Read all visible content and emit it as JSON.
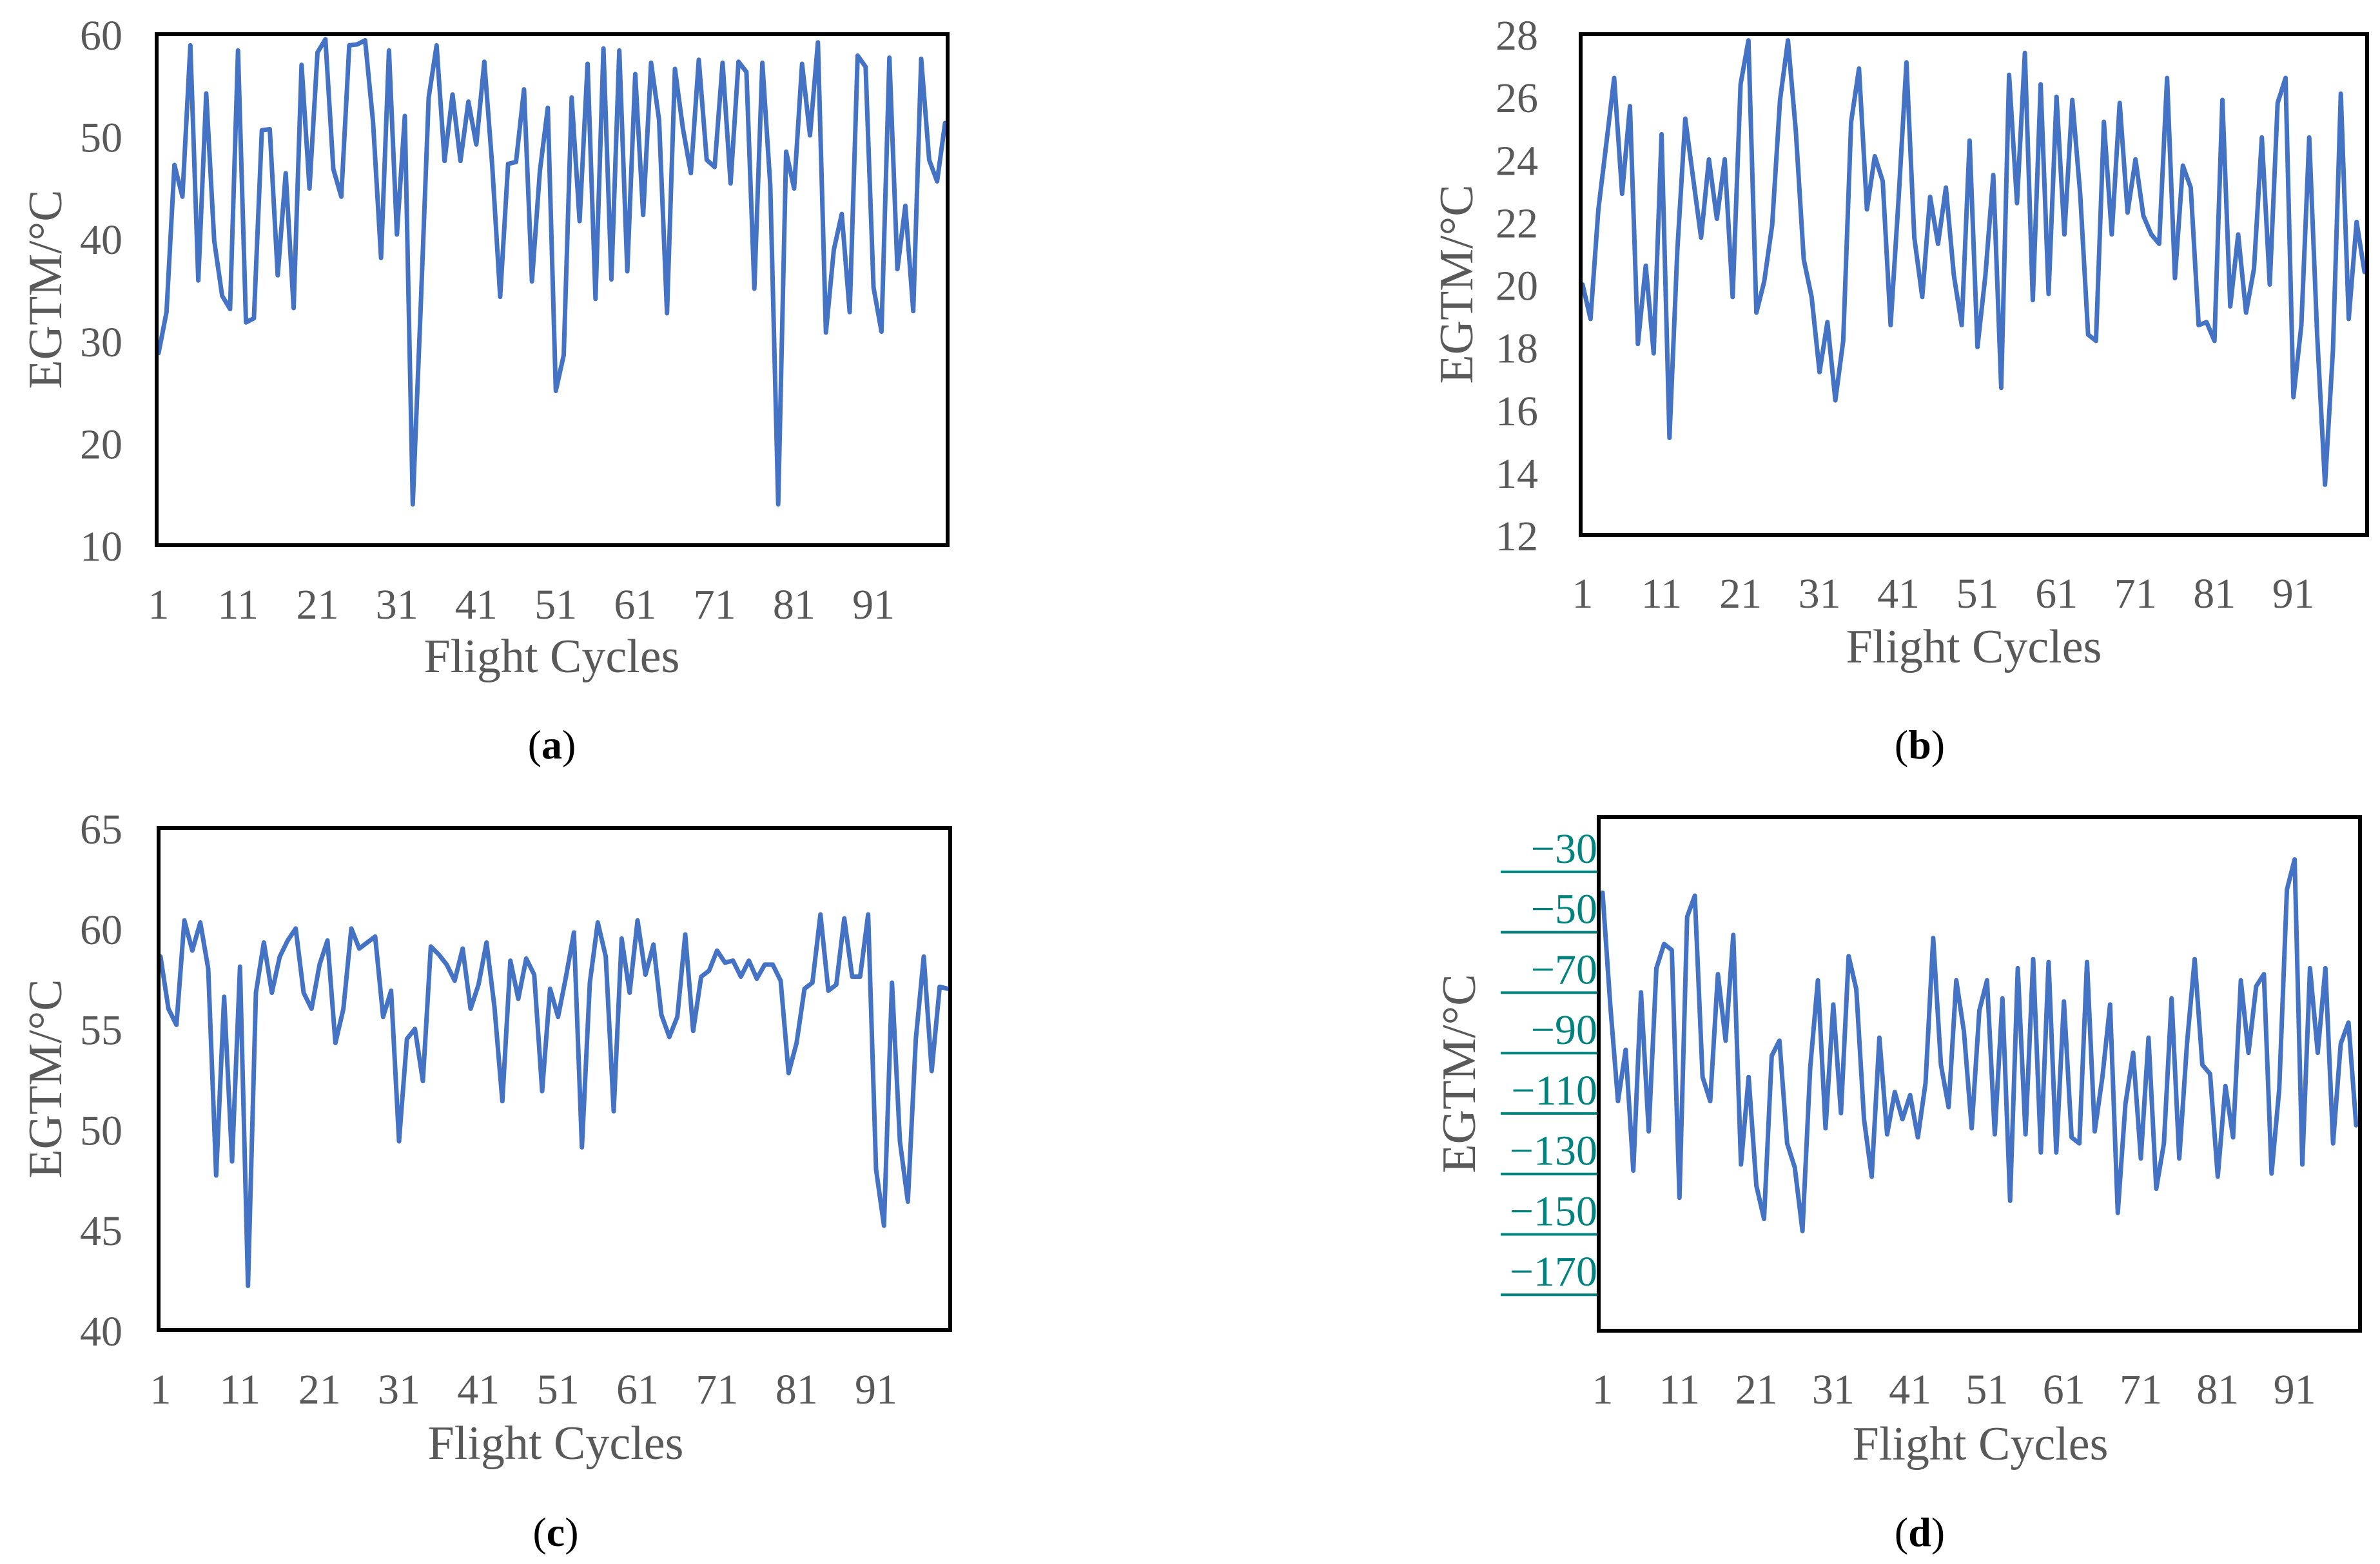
{
  "figure": {
    "series_color": "#4472C4",
    "frame_color": "#000000",
    "text_color": "#595959",
    "panel_d_tick_color": "#00827F"
  },
  "chart_data": [
    {
      "id": "a",
      "panel_label": "a",
      "type": "line",
      "xlabel": "Flight Cycles",
      "ylabel": "EGTM/°C",
      "ylim": [
        10,
        60
      ],
      "yticks": [
        "10",
        "20",
        "30",
        "40",
        "50",
        "60"
      ],
      "xticks": [
        "1",
        "11",
        "21",
        "31",
        "41",
        "51",
        "61",
        "71",
        "81",
        "91"
      ],
      "x_start": 1,
      "values": [
        28.8,
        32.8,
        47.2,
        44.1,
        58.9,
        35.9,
        54.2,
        39.8,
        34.4,
        33.1,
        58.4,
        31.8,
        32.2,
        50.6,
        50.7,
        36.4,
        46.4,
        33.2,
        57.0,
        44.9,
        58.2,
        59.5,
        46.8,
        44.1,
        58.9,
        59.0,
        59.4,
        51.4,
        38.1,
        58.4,
        40.4,
        52.0,
        14.0,
        33.4,
        53.8,
        58.9,
        47.6,
        54.1,
        47.6,
        53.4,
        49.2,
        57.3,
        47.1,
        34.3,
        47.3,
        47.5,
        54.6,
        35.8,
        46.6,
        52.8,
        25.1,
        28.6,
        53.8,
        41.7,
        57.1,
        34.1,
        58.6,
        36.0,
        58.4,
        36.8,
        56.1,
        42.3,
        57.2,
        51.6,
        32.7,
        56.6,
        50.8,
        46.4,
        57.5,
        47.7,
        47.0,
        57.2,
        45.4,
        57.3,
        56.3,
        35.1,
        57.2,
        45.2,
        14.0,
        48.5,
        44.9,
        57.1,
        50.1,
        59.2,
        30.8,
        38.9,
        42.4,
        32.8,
        57.9,
        56.8,
        35.2,
        30.9,
        57.7,
        37.0,
        43.2,
        32.9,
        57.6,
        47.7,
        45.6,
        51.3
      ]
    },
    {
      "id": "b",
      "panel_label": "b",
      "type": "line",
      "xlabel": "Flight Cycles",
      "ylabel": "EGTM/°C",
      "ylim": [
        12,
        28
      ],
      "yticks": [
        "12",
        "14",
        "16",
        "18",
        "20",
        "22",
        "24",
        "26",
        "28"
      ],
      "xticks": [
        "1",
        "11",
        "21",
        "31",
        "41",
        "51",
        "61",
        "71",
        "81",
        "91"
      ],
      "x_start": 1,
      "values": [
        20.0,
        18.9,
        22.4,
        24.5,
        26.6,
        22.9,
        25.7,
        18.1,
        20.6,
        17.8,
        24.8,
        15.1,
        21.1,
        25.3,
        23.4,
        21.5,
        24.0,
        22.1,
        24.0,
        19.6,
        26.4,
        27.8,
        19.1,
        20.1,
        21.9,
        25.9,
        27.8,
        24.9,
        20.8,
        19.6,
        17.2,
        18.8,
        16.3,
        18.2,
        25.2,
        26.9,
        22.4,
        24.1,
        23.3,
        18.7,
        22.7,
        27.1,
        21.5,
        19.6,
        22.8,
        21.3,
        23.1,
        20.3,
        18.7,
        24.6,
        18.0,
        20.3,
        23.5,
        16.7,
        26.7,
        22.6,
        27.4,
        19.5,
        26.4,
        19.7,
        26.0,
        21.6,
        25.9,
        22.9,
        18.4,
        18.2,
        25.2,
        21.6,
        25.8,
        22.3,
        24.0,
        22.2,
        21.6,
        21.3,
        26.6,
        20.2,
        23.8,
        23.1,
        18.7,
        18.8,
        18.2,
        25.9,
        19.3,
        21.6,
        19.1,
        20.5,
        24.7,
        20.0,
        25.8,
        26.6,
        16.4,
        18.7,
        24.7,
        18.4,
        13.6,
        17.9,
        26.1,
        18.9,
        22.0,
        20.4
      ]
    },
    {
      "id": "c",
      "panel_label": "c",
      "type": "line",
      "xlabel": "Flight Cycles",
      "ylabel": "EGTM/°C",
      "ylim": [
        40,
        65
      ],
      "yticks": [
        "40",
        "45",
        "50",
        "55",
        "60",
        "65"
      ],
      "xticks": [
        "1",
        "11",
        "21",
        "31",
        "41",
        "51",
        "61",
        "71",
        "81",
        "91"
      ],
      "x_start": 1,
      "values": [
        58.6,
        56.0,
        55.2,
        60.4,
        58.9,
        60.3,
        58.0,
        47.7,
        56.6,
        48.4,
        58.1,
        42.2,
        56.8,
        59.3,
        56.8,
        58.6,
        59.4,
        60.0,
        56.8,
        56.0,
        58.2,
        59.4,
        54.3,
        56.0,
        60.0,
        59.0,
        59.3,
        59.6,
        55.6,
        56.9,
        49.4,
        54.5,
        55.0,
        52.4,
        59.1,
        58.7,
        58.2,
        57.4,
        59.0,
        56.0,
        57.2,
        59.3,
        56.1,
        51.4,
        58.4,
        56.5,
        58.5,
        57.7,
        51.9,
        57.0,
        55.6,
        57.6,
        59.8,
        49.1,
        57.3,
        60.3,
        58.6,
        50.9,
        59.5,
        56.8,
        60.4,
        57.7,
        59.2,
        55.7,
        54.6,
        55.6,
        59.7,
        54.9,
        57.6,
        57.9,
        58.9,
        58.3,
        58.4,
        57.6,
        58.4,
        57.5,
        58.2,
        58.2,
        57.4,
        52.8,
        54.3,
        57.0,
        57.3,
        60.7,
        56.9,
        57.2,
        60.5,
        57.6,
        57.6,
        60.7,
        48.0,
        45.2,
        57.3,
        49.4,
        46.4,
        54.5,
        58.6,
        52.9,
        57.1,
        57.0
      ]
    },
    {
      "id": "d",
      "panel_label": "d",
      "type": "line",
      "xlabel": "Flight Cycles",
      "ylabel": "EGTM/°C",
      "ylim": [
        -190,
        -20
      ],
      "yticks": [
        "−30",
        "−50",
        "−70",
        "−90",
        "−110",
        "−130",
        "−150",
        "−170"
      ],
      "ytick_values": [
        -30,
        -50,
        -70,
        -90,
        -110,
        -130,
        -150,
        -170
      ],
      "xticks": [
        "1",
        "11",
        "21",
        "31",
        "41",
        "51",
        "61",
        "71",
        "81",
        "91"
      ],
      "x_start": 1,
      "values": [
        -45,
        -82,
        -114,
        -97,
        -137,
        -78,
        -124,
        -70,
        -62,
        -64,
        -146,
        -53,
        -46,
        -106,
        -114,
        -72,
        -94,
        -59,
        -135,
        -106,
        -142,
        -153,
        -99,
        -94,
        -128,
        -136,
        -157,
        -103,
        -74,
        -123,
        -82,
        -118,
        -66,
        -77,
        -120,
        -139,
        -93,
        -125,
        -111,
        -120,
        -112,
        -126,
        -108,
        -60,
        -102,
        -116,
        -74,
        -91,
        -123,
        -84,
        -74,
        -125,
        -80,
        -147,
        -70,
        -125,
        -67,
        -131,
        -68,
        -131,
        -81,
        -126,
        -128,
        -68,
        -124,
        -106,
        -82,
        -151,
        -115,
        -98,
        -133,
        -93,
        -143,
        -128,
        -80,
        -133,
        -95,
        -67,
        -102,
        -105,
        -139,
        -109,
        -126,
        -74,
        -98,
        -76,
        -72,
        -138,
        -110,
        -44,
        -34,
        -135,
        -70,
        -98,
        -70,
        -128,
        -95,
        -88,
        -122
      ]
    }
  ]
}
